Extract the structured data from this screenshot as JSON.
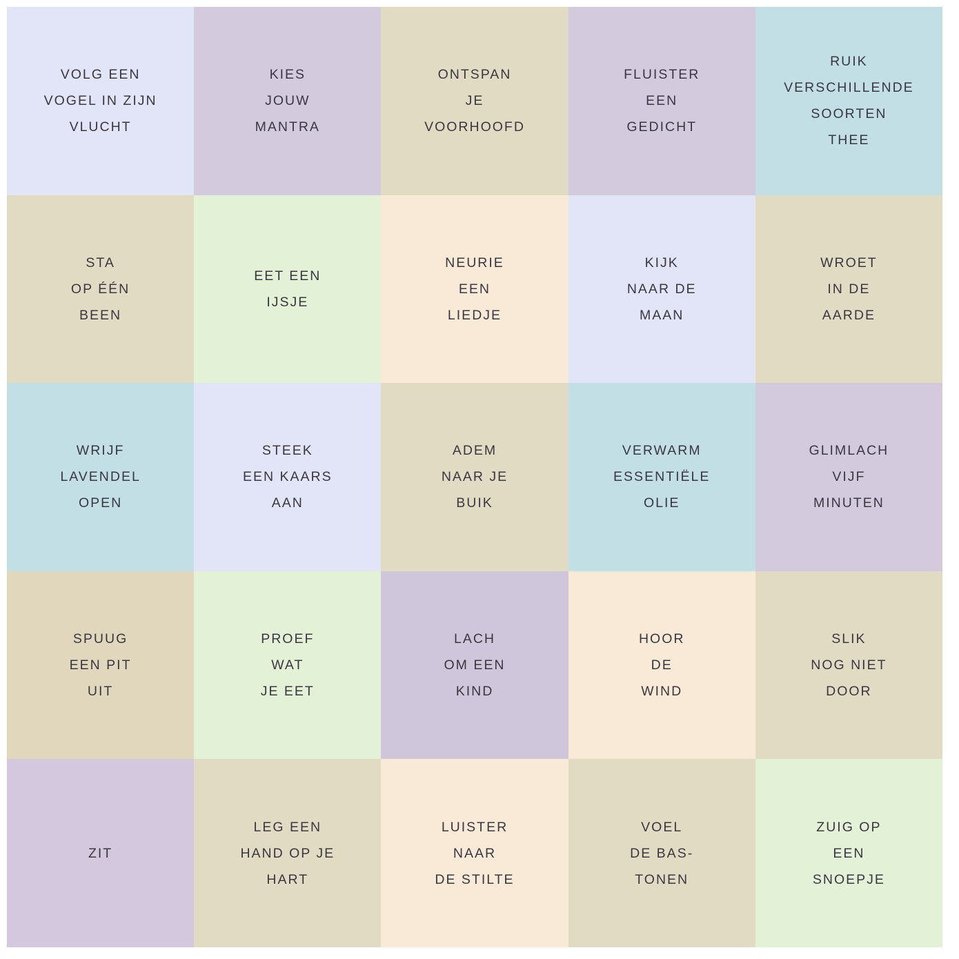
{
  "palette": {
    "lavender": "#e2e4f8",
    "mauve": "#d3cade",
    "tan": "#e2dbc3",
    "blue": "#c2dfe6",
    "green": "#e3f1d7",
    "peach": "#f8ead6",
    "text": "#3a3741",
    "background": "#ffffff"
  },
  "cells": [
    {
      "text": "VOLG EEN\nVOGEL IN ZIJN\nVLUCHT",
      "bg": "#e2e4f8"
    },
    {
      "text": "KIES\nJOUW\nMANTRA",
      "bg": "#d3cade"
    },
    {
      "text": "ONTSPAN\nJE\nVOORHOOFD",
      "bg": "#e2dbc3"
    },
    {
      "text": "FLUISTER\nEEN\nGEDICHT",
      "bg": "#d3cade"
    },
    {
      "text": "RUIK\nVERSCHILLENDE\nSOORTEN\nTHEE",
      "bg": "#c2dfe6"
    },
    {
      "text": "STA\nOP ÉÉN\nBEEN",
      "bg": "#e2dbc3"
    },
    {
      "text": "EET EEN\nIJSJE",
      "bg": "#e3f1d7"
    },
    {
      "text": "NEURIE\nEEN\nLIEDJE",
      "bg": "#f8ead6"
    },
    {
      "text": "KIJK\nNAAR DE\nMAAN",
      "bg": "#e2e4f8"
    },
    {
      "text": "WROET\nIN DE\nAARDE",
      "bg": "#e2dbc3"
    },
    {
      "text": "WRIJF\nLAVENDEL\nOPEN",
      "bg": "#c2dfe6"
    },
    {
      "text": "STEEK\nEEN KAARS\nAAN",
      "bg": "#e2e4f8"
    },
    {
      "text": "ADEM\nNAAR JE\nBUIK",
      "bg": "#e2dbc3"
    },
    {
      "text": "VERWARM\nESSENTIËLE\nOLIE",
      "bg": "#c2dfe6"
    },
    {
      "text": "GLIMLACH\nVIJF\nMINUTEN",
      "bg": "#d3cade"
    },
    {
      "text": "SPUUG\nEEN PIT\nUIT",
      "bg": "#e0d7bd"
    },
    {
      "text": "PROEF\nWAT\nJE EET",
      "bg": "#e3f1d7"
    },
    {
      "text": "LACH\nOM EEN\nKIND",
      "bg": "#d0c6dc"
    },
    {
      "text": "HOOR\nDE\nWIND",
      "bg": "#f8ead6"
    },
    {
      "text": "SLIK\nNOG NIET\nDOOR",
      "bg": "#e2dbc3"
    },
    {
      "text": "ZIT",
      "bg": "#d3c8de"
    },
    {
      "text": "LEG EEN\nHAND OP JE\nHART",
      "bg": "#e2dbc3"
    },
    {
      "text": "LUISTER\nNAAR\nDE STILTE",
      "bg": "#f8ead6"
    },
    {
      "text": "VOEL\nDE BAS-\nTONEN",
      "bg": "#e2dbc3"
    },
    {
      "text": "ZUIG OP\nEEN\nSNOEPJE",
      "bg": "#e3f1d7"
    }
  ]
}
